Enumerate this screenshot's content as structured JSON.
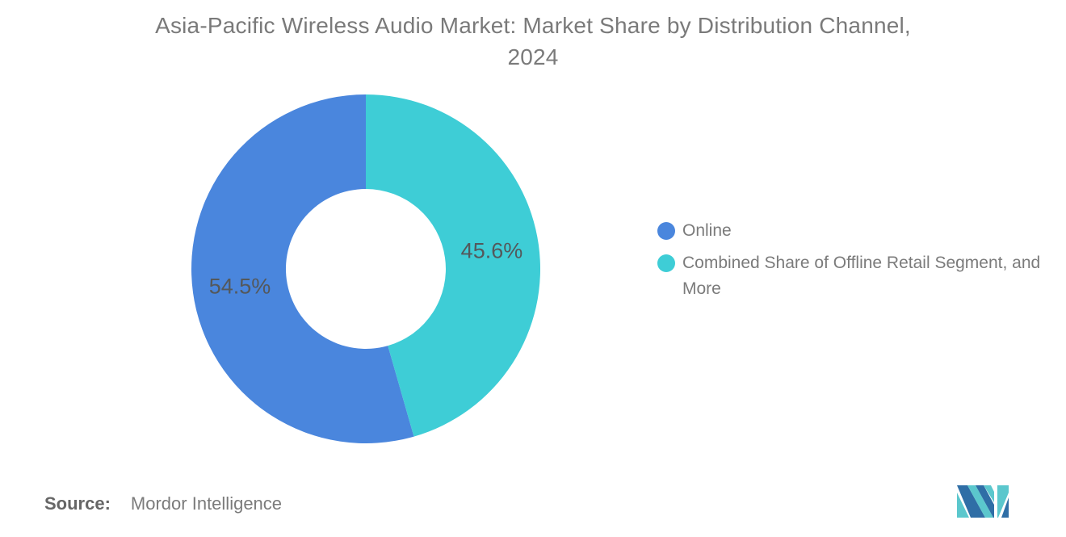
{
  "title": {
    "text": "Asia-Pacific Wireless Audio Market: Market Share by Distribution Channel, 2024",
    "lines": [
      "Asia-Pacific Wireless Audio Market: Market Share by Distribution Channel,",
      "2024"
    ],
    "color": "#7a7a7a"
  },
  "chart_data": {
    "type": "pie",
    "subtype": "donut",
    "title": "Asia-Pacific Wireless Audio Market: Market Share by Distribution Channel, 2024",
    "inner_radius_ratio": 0.46,
    "start_position": "12-o-clock",
    "direction": "counterclockwise",
    "label_color": "#54585b",
    "legend_position": "right",
    "segments": [
      {
        "id": "online",
        "label": "Online",
        "value": 54.5,
        "display": "54.5%",
        "color": "#4A86DD"
      },
      {
        "id": "offline-retail",
        "label": "Combined Share of Offline Retail Segment, and More",
        "value": 45.6,
        "display": "45.6%",
        "color": "#3ECDD6"
      }
    ]
  },
  "legend": {
    "items": [
      {
        "label": "Online",
        "color": "#4A86DD"
      },
      {
        "label": "Combined Share of Offline Retail Segment, and More",
        "color": "#3ECDD6"
      }
    ]
  },
  "source": {
    "prefix": "Source:",
    "value": "Mordor Intelligence"
  },
  "logo": {
    "name": "mordor-intelligence-logo",
    "colors": {
      "blue": "#2F6EA6",
      "teal": "#5BC7CD"
    }
  }
}
